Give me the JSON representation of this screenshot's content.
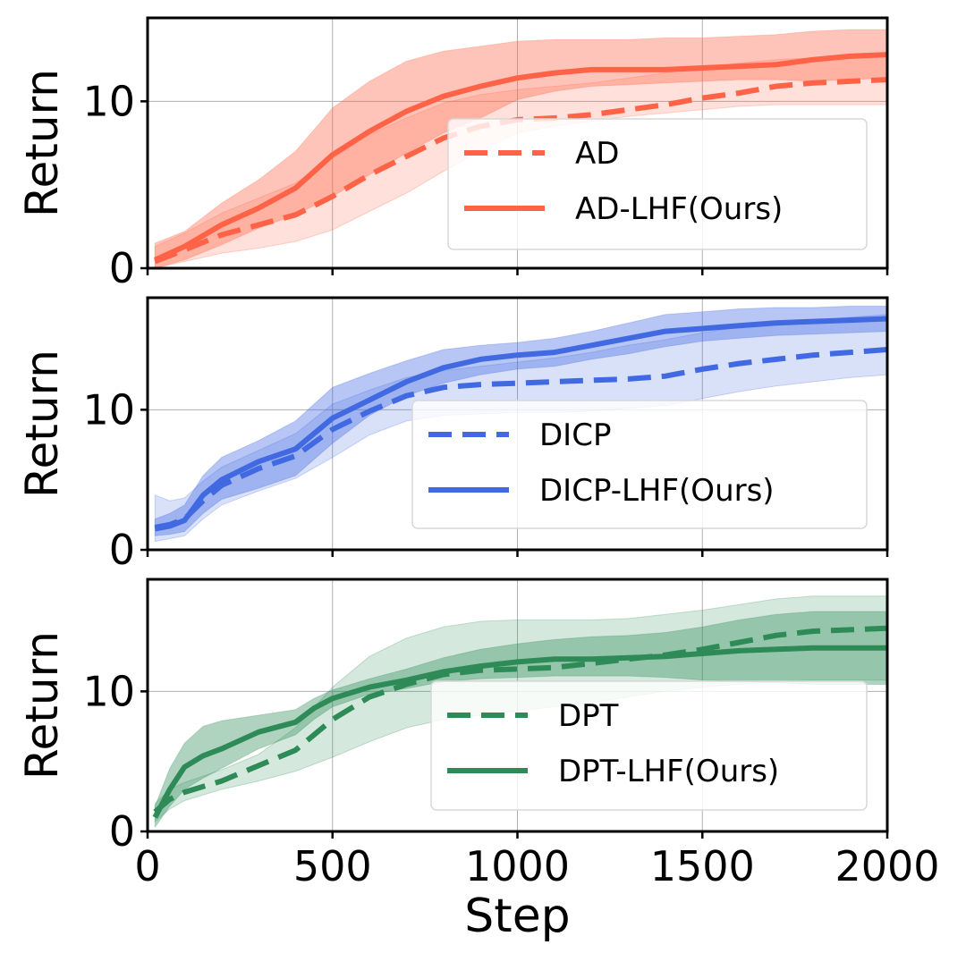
{
  "chart_data": [
    {
      "type": "line",
      "title": "",
      "xlabel": "",
      "ylabel": "Return",
      "xlim": [
        0,
        2000
      ],
      "ylim": [
        0,
        15
      ],
      "xticks": [
        0,
        500,
        1000,
        1500,
        2000
      ],
      "yticks": [
        0,
        10
      ],
      "ytick_labels": [
        "0",
        "10"
      ],
      "grid": true,
      "legend_position": "lower-right",
      "series": [
        {
          "name": "AD",
          "style": "dashed",
          "color": "#FF6347",
          "x": [
            20,
            100,
            200,
            300,
            400,
            500,
            600,
            700,
            800,
            900,
            1000,
            1100,
            1200,
            1300,
            1400,
            1500,
            1600,
            1700,
            1800,
            1900,
            2000
          ],
          "y": [
            0.4,
            1.1,
            2.0,
            2.6,
            3.2,
            4.3,
            5.6,
            6.7,
            7.8,
            8.5,
            8.9,
            9.0,
            9.2,
            9.5,
            9.8,
            10.2,
            10.5,
            10.9,
            11.1,
            11.2,
            11.3
          ],
          "lower": [
            0.0,
            0.4,
            0.9,
            1.2,
            1.6,
            2.3,
            3.4,
            4.5,
            5.8,
            7.0,
            8.1,
            8.5,
            8.8,
            9.1,
            9.3,
            9.5,
            9.7,
            9.8,
            9.8,
            9.8,
            9.8
          ],
          "upper": [
            1.3,
            2.1,
            3.3,
            4.2,
            5.1,
            6.6,
            8.0,
            9.0,
            9.9,
            10.4,
            10.7,
            10.9,
            11.1,
            11.4,
            11.7,
            12.0,
            12.3,
            12.5,
            12.6,
            12.7,
            12.8
          ]
        },
        {
          "name": "AD-LHF(Ours)",
          "style": "solid",
          "color": "#FF6347",
          "x": [
            20,
            100,
            200,
            300,
            400,
            500,
            600,
            700,
            800,
            900,
            1000,
            1100,
            1200,
            1300,
            1400,
            1500,
            1600,
            1700,
            1800,
            1900,
            2000
          ],
          "y": [
            0.5,
            1.3,
            2.6,
            3.6,
            4.8,
            6.8,
            8.2,
            9.4,
            10.3,
            10.9,
            11.4,
            11.7,
            11.9,
            11.9,
            11.9,
            12.0,
            12.1,
            12.2,
            12.5,
            12.7,
            12.8
          ],
          "lower": [
            0.0,
            0.5,
            1.4,
            2.4,
            3.2,
            4.3,
            5.6,
            6.9,
            8.1,
            9.0,
            10.1,
            10.6,
            10.9,
            11.0,
            11.1,
            11.2,
            11.3,
            11.3,
            11.2,
            11.3,
            11.4
          ],
          "upper": [
            1.5,
            2.2,
            3.9,
            5.3,
            7.0,
            9.6,
            11.2,
            12.4,
            13.0,
            13.3,
            13.6,
            13.7,
            13.7,
            13.7,
            13.8,
            13.8,
            13.9,
            14.0,
            14.2,
            14.3,
            14.3
          ]
        }
      ]
    },
    {
      "type": "line",
      "title": "",
      "xlabel": "",
      "ylabel": "Return",
      "xlim": [
        0,
        2000
      ],
      "ylim": [
        0,
        18
      ],
      "xticks": [
        0,
        500,
        1000,
        1500,
        2000
      ],
      "yticks": [
        0,
        10
      ],
      "ytick_labels": [
        "0",
        "10"
      ],
      "grid": true,
      "legend_position": "lower-right",
      "series": [
        {
          "name": "DICP",
          "style": "dashed",
          "color": "#4169E1",
          "x": [
            20,
            60,
            100,
            150,
            200,
            300,
            400,
            500,
            600,
            700,
            800,
            900,
            1000,
            1100,
            1200,
            1300,
            1400,
            1500,
            1600,
            1700,
            1800,
            1900,
            2000
          ],
          "y": [
            1.6,
            1.8,
            2.2,
            3.5,
            4.6,
            5.8,
            6.7,
            8.6,
            9.9,
            11.0,
            11.6,
            11.8,
            11.9,
            12.0,
            12.1,
            12.2,
            12.4,
            12.9,
            13.3,
            13.6,
            13.9,
            14.1,
            14.3
          ],
          "lower": [
            0.6,
            0.8,
            1.0,
            2.2,
            3.2,
            4.2,
            5.1,
            6.6,
            8.2,
            9.2,
            9.6,
            9.7,
            9.8,
            9.8,
            9.9,
            10.1,
            10.3,
            10.8,
            11.3,
            11.7,
            12.0,
            12.3,
            12.5
          ],
          "upper": [
            3.9,
            3.5,
            3.7,
            4.9,
            5.9,
            7.1,
            8.3,
            10.4,
            11.4,
            12.3,
            12.8,
            13.1,
            13.4,
            13.7,
            14.1,
            14.6,
            15.0,
            15.5,
            15.9,
            16.2,
            16.4,
            16.6,
            16.8
          ]
        },
        {
          "name": "DICP-LHF(Ours)",
          "style": "solid",
          "color": "#4169E1",
          "x": [
            20,
            60,
            100,
            150,
            200,
            300,
            400,
            500,
            600,
            700,
            800,
            900,
            1000,
            1100,
            1200,
            1300,
            1400,
            1500,
            1600,
            1700,
            1800,
            1900,
            2000
          ],
          "y": [
            1.5,
            1.7,
            2.1,
            3.9,
            5.0,
            6.3,
            7.2,
            9.4,
            10.7,
            12.0,
            13.0,
            13.6,
            13.9,
            14.1,
            14.6,
            15.1,
            15.6,
            15.8,
            16.0,
            16.2,
            16.3,
            16.4,
            16.5
          ],
          "lower": [
            1.0,
            1.1,
            1.3,
            2.6,
            3.6,
            4.4,
            5.3,
            7.6,
            9.6,
            11.0,
            11.9,
            12.5,
            12.9,
            13.1,
            13.6,
            14.0,
            14.5,
            14.9,
            15.1,
            15.3,
            15.4,
            15.5,
            15.6
          ],
          "upper": [
            2.2,
            2.6,
            3.2,
            5.3,
            6.6,
            7.8,
            9.2,
            11.6,
            12.6,
            13.5,
            14.3,
            14.6,
            14.8,
            15.1,
            15.6,
            16.2,
            16.8,
            17.0,
            17.2,
            17.3,
            17.3,
            17.4,
            17.4
          ]
        }
      ]
    },
    {
      "type": "line",
      "title": "",
      "xlabel": "Step",
      "ylabel": "Return",
      "xlim": [
        0,
        2000
      ],
      "ylim": [
        0,
        18
      ],
      "xticks": [
        0,
        500,
        1000,
        1500,
        2000
      ],
      "xtick_labels": [
        "0",
        "500",
        "1000",
        "1500",
        "2000"
      ],
      "yticks": [
        0,
        10
      ],
      "ytick_labels": [
        "0",
        "10"
      ],
      "grid": true,
      "legend_position": "lower-right",
      "series": [
        {
          "name": "DPT",
          "style": "dashed",
          "color": "#2E8B57",
          "x": [
            20,
            60,
            100,
            200,
            300,
            400,
            500,
            600,
            700,
            800,
            900,
            1000,
            1100,
            1200,
            1300,
            1400,
            1500,
            1600,
            1700,
            1800,
            1900,
            2000
          ],
          "y": [
            1.4,
            2.3,
            2.8,
            3.6,
            4.7,
            5.8,
            8.0,
            9.6,
            10.5,
            11.2,
            11.5,
            11.6,
            11.7,
            12.0,
            12.3,
            12.6,
            13.0,
            13.5,
            14.0,
            14.3,
            14.4,
            14.5
          ],
          "lower": [
            0.7,
            1.6,
            2.2,
            3.0,
            3.6,
            4.3,
            5.3,
            6.4,
            7.4,
            8.0,
            8.3,
            8.6,
            8.9,
            9.2,
            9.6,
            10.0,
            10.3,
            10.5,
            10.7,
            10.8,
            10.8,
            10.8
          ],
          "upper": [
            2.0,
            3.0,
            3.5,
            4.4,
            5.5,
            7.4,
            10.3,
            12.5,
            13.8,
            14.6,
            15.0,
            15.1,
            15.1,
            15.1,
            15.2,
            15.5,
            15.8,
            16.2,
            16.6,
            16.8,
            16.8,
            16.8
          ]
        },
        {
          "name": "DPT-LHF(Ours)",
          "style": "solid",
          "color": "#2E8B57",
          "x": [
            20,
            60,
            100,
            150,
            200,
            300,
            400,
            450,
            500,
            600,
            700,
            800,
            900,
            1000,
            1100,
            1200,
            1300,
            1400,
            1500,
            1600,
            1700,
            1800,
            1900,
            2000
          ],
          "y": [
            1.0,
            3.0,
            4.6,
            5.4,
            5.9,
            7.1,
            7.8,
            8.8,
            9.5,
            10.3,
            10.8,
            11.4,
            11.8,
            12.1,
            12.3,
            12.3,
            12.4,
            12.5,
            12.7,
            12.9,
            13.0,
            13.1,
            13.1,
            13.1
          ],
          "lower": [
            0.3,
            1.8,
            3.0,
            3.8,
            4.5,
            5.9,
            6.9,
            8.0,
            8.9,
            9.8,
            10.2,
            10.7,
            10.9,
            11.0,
            11.1,
            11.1,
            11.1,
            11.0,
            10.8,
            10.7,
            10.6,
            10.5,
            10.5,
            10.5
          ],
          "upper": [
            1.8,
            4.5,
            6.3,
            7.5,
            7.9,
            8.3,
            8.7,
            9.5,
            10.1,
            10.9,
            11.6,
            12.4,
            13.0,
            13.4,
            13.7,
            13.9,
            14.0,
            14.2,
            14.6,
            15.1,
            15.5,
            15.7,
            15.7,
            15.7
          ]
        }
      ]
    }
  ]
}
